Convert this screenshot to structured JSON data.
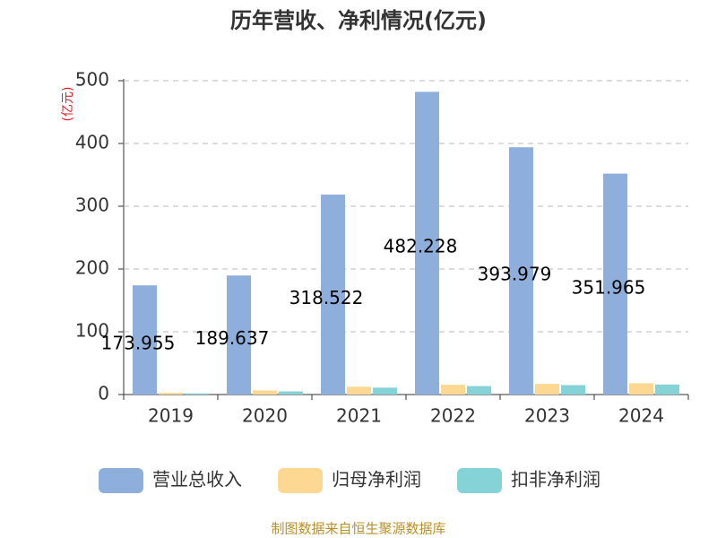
{
  "chart_data": {
    "type": "bar",
    "title": "历年营收、净利情况(亿元)",
    "y_label": "(亿元)",
    "source": "制图数据来自恒生聚源数据库",
    "categories": [
      "2019",
      "2020",
      "2021",
      "2022",
      "2023",
      "2024"
    ],
    "series": [
      {
        "name": "营业总收入",
        "color": "#8eaedb",
        "values": [
          173.955,
          189.637,
          318.522,
          482.228,
          393.979,
          351.965
        ]
      },
      {
        "name": "归母净利润",
        "color": "#fdd892",
        "values": [
          2.8,
          6.5,
          12.5,
          15.5,
          17,
          18
        ]
      },
      {
        "name": "扣非净利润",
        "color": "#85d3d6",
        "values": [
          1.8,
          5,
          11,
          13.5,
          15,
          16
        ]
      }
    ],
    "ylim": [
      0,
      500
    ],
    "yticks": [
      0,
      100,
      200,
      300,
      400,
      500
    ],
    "grid": true
  }
}
